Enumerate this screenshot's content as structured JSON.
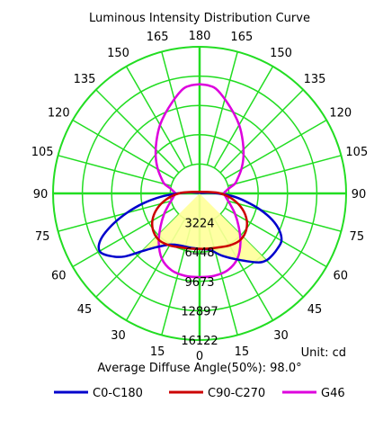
{
  "chart_data": {
    "type": "polar",
    "title": "Luminous Intensity Distribution Curve",
    "unit_label": "Unit: cd",
    "average_label": "Average Diffuse Angle(50%): 98.0°",
    "angle_ticks": [
      {
        "text": "180",
        "angle": 180,
        "side": "right"
      },
      {
        "text": "165",
        "angle": 165,
        "side": "left"
      },
      {
        "text": "165",
        "angle": 165,
        "side": "right"
      },
      {
        "text": "150",
        "angle": 150,
        "side": "left"
      },
      {
        "text": "150",
        "angle": 150,
        "side": "right"
      },
      {
        "text": "135",
        "angle": 135,
        "side": "left"
      },
      {
        "text": "135",
        "angle": 135,
        "side": "right"
      },
      {
        "text": "120",
        "angle": 120,
        "side": "left"
      },
      {
        "text": "120",
        "angle": 120,
        "side": "right"
      },
      {
        "text": "105",
        "angle": 105,
        "side": "left"
      },
      {
        "text": "105",
        "angle": 105,
        "side": "right"
      },
      {
        "text": "90",
        "angle": 90,
        "side": "left"
      },
      {
        "text": "90",
        "angle": 90,
        "side": "right"
      },
      {
        "text": "75",
        "angle": 75,
        "side": "left"
      },
      {
        "text": "75",
        "angle": 75,
        "side": "right"
      },
      {
        "text": "60",
        "angle": 60,
        "side": "left"
      },
      {
        "text": "60",
        "angle": 60,
        "side": "right"
      },
      {
        "text": "45",
        "angle": 45,
        "side": "left"
      },
      {
        "text": "45",
        "angle": 45,
        "side": "right"
      },
      {
        "text": "30",
        "angle": 30,
        "side": "left"
      },
      {
        "text": "30",
        "angle": 30,
        "side": "right"
      },
      {
        "text": "15",
        "angle": 15,
        "side": "left"
      },
      {
        "text": "15",
        "angle": 15,
        "side": "right"
      },
      {
        "text": "0",
        "angle": 0,
        "side": "right"
      }
    ],
    "radial_ticks": [
      {
        "text": "3224",
        "value": 3224
      },
      {
        "text": "6448",
        "value": 6448
      },
      {
        "text": "9673",
        "value": 9673
      },
      {
        "text": "12897",
        "value": 12897
      },
      {
        "text": "16122",
        "value": 16122
      }
    ],
    "rmax": 16122,
    "fill_region": {
      "series": "C0-C180",
      "angle_max": 49,
      "color": "#ffff99"
    },
    "series": [
      {
        "name": "C0-C180",
        "color": "#0000cc",
        "angles": [
          0,
          10,
          20,
          30,
          40,
          45,
          50,
          55,
          60,
          65,
          70,
          75,
          80,
          85,
          90,
          95,
          100
        ],
        "left": [
          6100,
          6050,
          6100,
          6500,
          7800,
          9000,
          10800,
          12000,
          12700,
          12000,
          10300,
          8300,
          6300,
          4300,
          2400,
          1300,
          600
        ],
        "right": [
          6100,
          6300,
          7300,
          8400,
          9900,
          10400,
          10500,
          10500,
          10400,
          9700,
          8500,
          6900,
          5200,
          3700,
          2000,
          900,
          300
        ]
      },
      {
        "name": "C90-C270",
        "color": "#cc0000",
        "angles": [
          0,
          10,
          20,
          30,
          40,
          50,
          60,
          70,
          80,
          90,
          100
        ],
        "left": [
          6100,
          6150,
          6300,
          6600,
          6800,
          6600,
          6000,
          5000,
          3700,
          2300,
          900
        ],
        "right": [
          6100,
          6150,
          6300,
          6600,
          6800,
          6600,
          6000,
          5000,
          3700,
          2300,
          900
        ]
      },
      {
        "name": "G46",
        "color": "#dd00dd",
        "angles": [
          0,
          10,
          20,
          30,
          40,
          50,
          60,
          70,
          80,
          90,
          95,
          100,
          105,
          110,
          120,
          130,
          140,
          150,
          160,
          170,
          175,
          180
        ],
        "left": [
          9200,
          9200,
          9000,
          8300,
          7000,
          5600,
          4500,
          3600,
          3000,
          2700,
          2900,
          3300,
          4000,
          4400,
          5300,
          6300,
          7400,
          8700,
          10000,
          11500,
          11900,
          12000
        ],
        "right": [
          9200,
          9200,
          9000,
          8300,
          7000,
          5600,
          4500,
          3600,
          3000,
          2700,
          2900,
          3300,
          4000,
          4400,
          5300,
          6300,
          7400,
          8700,
          10000,
          11500,
          11900,
          12000
        ]
      }
    ],
    "grid": true,
    "grid_color": "#22dd22",
    "legend_position": "bottom"
  }
}
